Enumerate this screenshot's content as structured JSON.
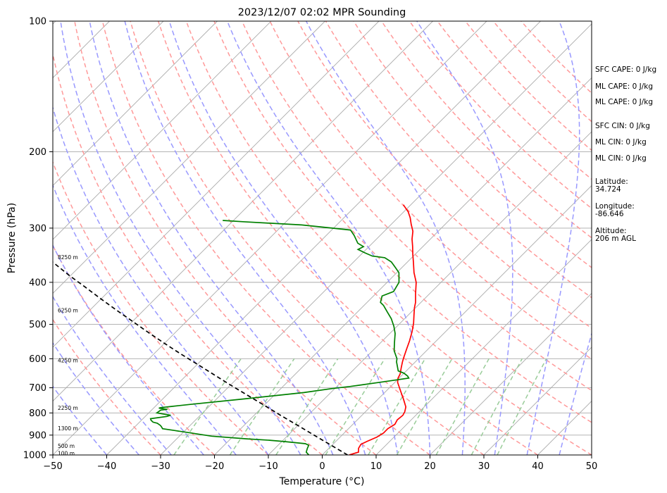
{
  "chart_data": {
    "type": "line",
    "subtype": "skew-t log-p sounding",
    "title": "2023/12/07 02:02 MPR Sounding",
    "xlabel": "Temperature (°C)",
    "ylabel": "Pressure (hPa)",
    "xlim": [
      -50,
      50
    ],
    "ylim": [
      1000,
      100
    ],
    "yscale": "log",
    "x_ticks": [
      "−50",
      "−40",
      "−30",
      "−20",
      "−10",
      "0",
      "10",
      "20",
      "30",
      "40",
      "50"
    ],
    "y_ticks": [
      "100",
      "200",
      "300",
      "400",
      "500",
      "600",
      "700",
      "800",
      "900",
      "1000"
    ],
    "grid": true,
    "colors": {
      "temperature": "#ff0000",
      "dewpoint": "#008000",
      "parcel": "#000000",
      "isotherms": "#aaaaaa",
      "dry_adiabats": "#ff9999",
      "moist_adiabats": "#9999ff",
      "mixing_ratio": "#99cc99"
    },
    "series": [
      {
        "key": "temperature",
        "points": [
          [
            5.0,
            1000
          ],
          [
            6.2,
            985
          ],
          [
            5.5,
            965
          ],
          [
            5.2,
            945
          ],
          [
            5.8,
            930
          ],
          [
            6.8,
            910
          ],
          [
            7.3,
            890
          ],
          [
            7.3,
            870
          ],
          [
            7.8,
            850
          ],
          [
            7.4,
            830
          ],
          [
            7.6,
            810
          ],
          [
            7.3,
            795
          ],
          [
            6.6,
            775
          ],
          [
            4.8,
            745
          ],
          [
            2.2,
            705
          ],
          [
            0.5,
            680
          ],
          [
            -0.2,
            665
          ],
          [
            -0.6,
            650
          ],
          [
            -1.5,
            630
          ],
          [
            -2.4,
            610
          ],
          [
            -3.0,
            595
          ],
          [
            -4.0,
            570
          ],
          [
            -5.0,
            545
          ],
          [
            -6.2,
            520
          ],
          [
            -7.5,
            497
          ],
          [
            -9.0,
            475
          ],
          [
            -10.2,
            458
          ],
          [
            -11.0,
            445
          ],
          [
            -12.6,
            425
          ],
          [
            -14.6,
            400
          ],
          [
            -16.8,
            380
          ],
          [
            -18.8,
            360
          ],
          [
            -20.4,
            345
          ],
          [
            -22.0,
            330
          ],
          [
            -23.4,
            318
          ],
          [
            -24.7,
            305
          ],
          [
            -26.3,
            294
          ],
          [
            -27.7,
            284
          ],
          [
            -29.2,
            275
          ],
          [
            -31.4,
            265
          ]
        ]
      },
      {
        "key": "dewpoint",
        "points": [
          [
            -2.5,
            1000
          ],
          [
            -3.5,
            985
          ],
          [
            -4.0,
            965
          ],
          [
            -4.3,
            950
          ],
          [
            -5.2,
            942
          ],
          [
            -8.0,
            935
          ],
          [
            -10.0,
            930
          ],
          [
            -12.5,
            925
          ],
          [
            -17.0,
            918
          ],
          [
            -24.0,
            905
          ],
          [
            -29.0,
            888
          ],
          [
            -32.0,
            878
          ],
          [
            -34.5,
            870
          ],
          [
            -35.0,
            862
          ],
          [
            -35.5,
            855
          ],
          [
            -36.5,
            845
          ],
          [
            -37.5,
            840
          ],
          [
            -38.2,
            832
          ],
          [
            -38.6,
            825
          ],
          [
            -36.0,
            815
          ],
          [
            -35.5,
            810
          ],
          [
            -38.5,
            800
          ],
          [
            -38.3,
            788
          ],
          [
            -37.2,
            785
          ],
          [
            -39.0,
            780
          ],
          [
            -38.8,
            778
          ],
          [
            -37.0,
            773
          ],
          [
            -34.0,
            765
          ],
          [
            -25.0,
            743
          ],
          [
            -15.0,
            718
          ],
          [
            -10.5,
            703
          ],
          [
            -7.5,
            695
          ],
          [
            -1.5,
            676
          ],
          [
            1.8,
            665
          ],
          [
            1.2,
            658
          ],
          [
            0,
            648
          ],
          [
            -1.5,
            640
          ],
          [
            -3.5,
            610
          ],
          [
            -4.0,
            600
          ],
          [
            -6.0,
            575
          ],
          [
            -7.5,
            550
          ],
          [
            -9.0,
            525
          ],
          [
            -10.6,
            505
          ],
          [
            -12.5,
            485
          ],
          [
            -14.6,
            467
          ],
          [
            -16.4,
            452
          ],
          [
            -17.5,
            445
          ],
          [
            -18.4,
            430
          ],
          [
            -17.1,
            420
          ],
          [
            -17.8,
            400
          ],
          [
            -19.6,
            380
          ],
          [
            -21.5,
            368
          ],
          [
            -23.0,
            359
          ],
          [
            -25.0,
            351
          ],
          [
            -27.6,
            348
          ],
          [
            -29.6,
            342
          ],
          [
            -31.5,
            336
          ],
          [
            -31.0,
            331
          ],
          [
            -32.7,
            325
          ],
          [
            -34.8,
            312
          ],
          [
            -36.5,
            303
          ],
          [
            -46.5,
            295
          ],
          [
            -58.0,
            290
          ],
          [
            -62.0,
            288
          ]
        ]
      },
      {
        "key": "parcel",
        "points": [
          [
            4.7,
            1000
          ],
          [
            0,
            951
          ],
          [
            -5,
            902
          ],
          [
            -10,
            855
          ],
          [
            -15,
            811
          ],
          [
            -20,
            768
          ],
          [
            -25,
            728
          ],
          [
            -30,
            690
          ],
          [
            -35,
            653
          ],
          [
            -40,
            618
          ],
          [
            -45,
            585
          ],
          [
            -50,
            553
          ],
          [
            -55,
            522
          ],
          [
            -60,
            492
          ],
          [
            -65,
            464
          ],
          [
            -70,
            437
          ],
          [
            -75,
            411
          ],
          [
            -80,
            387
          ],
          [
            -85,
            363
          ],
          [
            -90,
            341
          ],
          [
            -95,
            320
          ],
          [
            -100,
            299
          ],
          [
            -105,
            281
          ],
          [
            -107,
            272
          ]
        ]
      }
    ],
    "height_labels": [
      {
        "label": "100 m",
        "p": 990
      },
      {
        "label": "500 m",
        "p": 953
      },
      {
        "label": "1300 m",
        "p": 868
      },
      {
        "label": "2250 m",
        "p": 778
      },
      {
        "label": "4250 m",
        "p": 605
      },
      {
        "label": "6250 m",
        "p": 464
      },
      {
        "label": "8250 m",
        "p": 350
      }
    ],
    "stats": [
      [
        "SFC CAPE: 0 J/kg"
      ],
      [
        "ML CAPE: 0 J/kg"
      ],
      [
        "ML CAPE: 0 J/kg"
      ],
      [
        "SFC CIN: 0 J/kg"
      ],
      [
        "ML CIN: 0 J/kg"
      ],
      [
        "ML CIN: 0 J/kg"
      ],
      [
        "Latitude:",
        "34.724"
      ],
      [
        "Longitude:",
        "-86.646"
      ],
      [
        "Altitude:",
        "206 m AGL"
      ]
    ]
  }
}
